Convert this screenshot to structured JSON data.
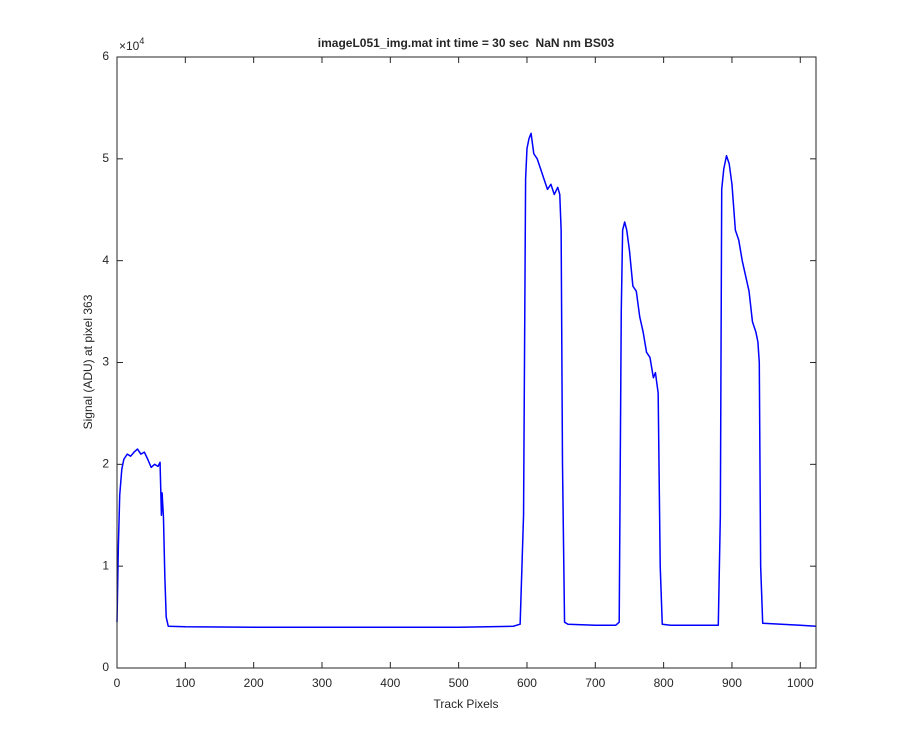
{
  "chart_data": {
    "type": "line",
    "title": "imageL051_img.mat int time = 30 sec  NaN nm BS03",
    "x_label": "Track Pixels",
    "y_label": "Signal (ADU) at pixel 363",
    "y_multiplier": {
      "base": "×10",
      "exponent": "4"
    },
    "xlim": [
      0,
      1023
    ],
    "ylim": [
      0,
      6
    ],
    "xticks": [
      0,
      100,
      200,
      300,
      400,
      500,
      600,
      700,
      800,
      900,
      1000
    ],
    "yticks": [
      0,
      1,
      2,
      3,
      4,
      5,
      6
    ],
    "grid": false,
    "series": [
      {
        "name": "signal",
        "color": "#0000ff",
        "x": [
          0,
          2,
          4,
          7,
          10,
          15,
          20,
          25,
          30,
          35,
          40,
          45,
          50,
          55,
          60,
          63,
          65,
          66,
          68,
          70,
          72,
          75,
          100,
          200,
          300,
          400,
          500,
          580,
          590,
          595,
          598,
          600,
          603,
          606,
          610,
          615,
          620,
          625,
          630,
          635,
          640,
          645,
          648,
          650,
          652,
          655,
          660,
          700,
          730,
          735,
          738,
          740,
          743,
          746,
          750,
          755,
          760,
          765,
          770,
          775,
          780,
          785,
          788,
          792,
          795,
          798,
          810,
          850,
          880,
          883,
          885,
          888,
          892,
          896,
          900,
          905,
          910,
          915,
          920,
          925,
          930,
          935,
          938,
          940,
          942,
          945,
          1000,
          1023
        ],
        "values": [
          0.45,
          1.2,
          1.7,
          1.95,
          2.05,
          2.1,
          2.08,
          2.12,
          2.15,
          2.1,
          2.12,
          2.05,
          1.97,
          2.0,
          1.98,
          2.02,
          1.5,
          1.72,
          1.48,
          0.9,
          0.5,
          0.41,
          0.405,
          0.4,
          0.4,
          0.4,
          0.4,
          0.41,
          0.43,
          1.5,
          4.8,
          5.1,
          5.2,
          5.25,
          5.05,
          5.0,
          4.9,
          4.8,
          4.7,
          4.75,
          4.65,
          4.72,
          4.65,
          4.3,
          2.0,
          0.45,
          0.43,
          0.42,
          0.42,
          0.45,
          3.5,
          4.3,
          4.38,
          4.3,
          4.1,
          3.75,
          3.7,
          3.45,
          3.3,
          3.1,
          3.05,
          2.85,
          2.9,
          2.7,
          1.0,
          0.43,
          0.42,
          0.42,
          0.42,
          1.5,
          4.7,
          4.9,
          5.03,
          4.95,
          4.75,
          4.3,
          4.2,
          4.0,
          3.85,
          3.7,
          3.4,
          3.3,
          3.2,
          3.0,
          1.0,
          0.44,
          0.42,
          0.41
        ]
      }
    ]
  }
}
